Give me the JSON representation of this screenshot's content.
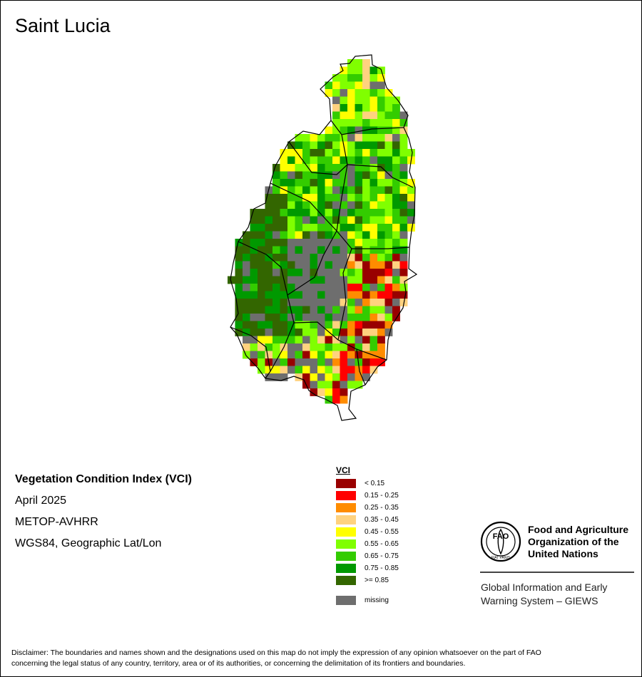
{
  "map": {
    "title": "Saint Lucia",
    "index_name": "Vegetation Condition Index (VCI)",
    "period": "April 2025",
    "sensor": "METOP-AVHRR",
    "projection": "WGS84, Geographic Lat/Lon"
  },
  "legend": {
    "title": "VCI",
    "classes": [
      {
        "label": "< 0.15",
        "color": "#990000"
      },
      {
        "label": "0.15 - 0.25",
        "color": "#ff0000"
      },
      {
        "label": "0.25 - 0.35",
        "color": "#ff8c00"
      },
      {
        "label": "0.35 - 0.45",
        "color": "#ffd27f"
      },
      {
        "label": "0.45 - 0.55",
        "color": "#ffff00"
      },
      {
        "label": "0.55 - 0.65",
        "color": "#80ff00"
      },
      {
        "label": "0.65 - 0.75",
        "color": "#33cc00"
      },
      {
        "label": "0.75 - 0.85",
        "color": "#009900"
      },
      {
        "label": ">= 0.85",
        "color": "#336600"
      }
    ],
    "missing": {
      "label": "missing",
      "color": "#6e6e6e"
    }
  },
  "logo": {
    "org_line1": "Food and Agriculture",
    "org_line2": "Organization of the",
    "org_line3": "United Nations",
    "giews_line1": "Global Information and Early",
    "giews_line2": "Warning System – GIEWS",
    "emblem_text": "FAO",
    "motto": "FIAT PANIS"
  },
  "disclaimer": {
    "line1": "Disclaimer: The boundaries and names shown and the designations used on this map do not imply the expression of any opinion whatsoever on the part of FAO",
    "line2": "concerning the legal status of any country, territory, area or of its authorities, or concerning the delimitation of its frontiers and boundaries."
  }
}
